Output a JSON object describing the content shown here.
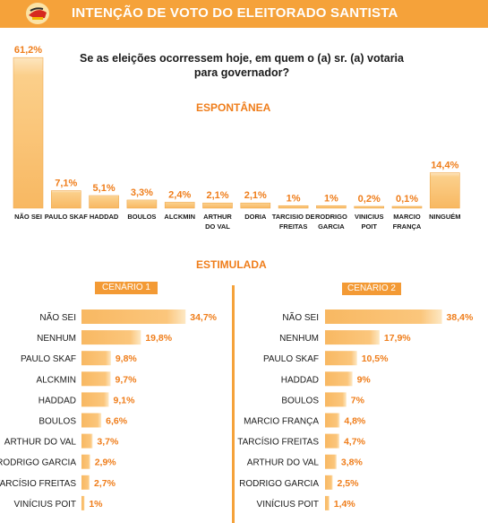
{
  "header": {
    "title": "INTENÇÃO DE VOTO DO ELEITORADO SANTISTA"
  },
  "question_line1": "Se as eleições ocorressem hoje, em quem o (a) sr. (a) votaria",
  "question_line2": "para governador?",
  "colors": {
    "accent": "#f5a23a",
    "bar": "#f9c274",
    "label": "#ef7d1a",
    "header_text": "#ffffff"
  },
  "chart_data": [
    {
      "type": "bar",
      "title": "ESPONTÂNEA",
      "categories": [
        "NÃO SEI",
        "PAULO SKAF",
        "HADDAD",
        "BOULOS",
        "ALCKMIN",
        "ARTHUR DO VAL",
        "DORIA",
        "TARCISIO DE FREITAS",
        "RODRIGO GARCIA",
        "VINICIUS POIT",
        "MARCIO FRANÇA",
        "NINGUÉM"
      ],
      "values": [
        61.2,
        7.1,
        5.1,
        3.3,
        2.4,
        2.1,
        2.1,
        1,
        1,
        0.2,
        0.1,
        14.4
      ],
      "value_labels": [
        "61,2%",
        "7,1%",
        "5,1%",
        "3,3%",
        "2,4%",
        "2,1%",
        "2,1%",
        "1%",
        "1%",
        "0,2%",
        "0,1%",
        "14,4%"
      ],
      "category_lines": [
        [
          "NÃO SEI"
        ],
        [
          "PAULO SKAF"
        ],
        [
          "HADDAD"
        ],
        [
          "BOULOS"
        ],
        [
          "ALCKMIN"
        ],
        [
          "ARTHUR",
          "DO VAL"
        ],
        [
          "DORIA"
        ],
        [
          "TARCISIO DE",
          "FREITAS"
        ],
        [
          "RODRIGO",
          "GARCIA"
        ],
        [
          "VINICIUS",
          "POIT"
        ],
        [
          "MARCIO",
          "FRANÇA"
        ],
        [
          "NINGUÉM"
        ]
      ],
      "ylim": [
        0,
        62
      ]
    },
    {
      "type": "bar",
      "orientation": "horizontal",
      "title": "ESTIMULADA",
      "scenario_label": "CENÁRIO 1",
      "categories": [
        "NÃO SEI",
        "NENHUM",
        "PAULO SKAF",
        "ALCKMIN",
        "HADDAD",
        "BOULOS",
        "ARTHUR DO VAL",
        "RODRIGO GARCIA",
        "TARCÍSIO FREITAS",
        "VINÍCIUS POIT"
      ],
      "values": [
        34.7,
        19.8,
        9.8,
        9.7,
        9.1,
        6.6,
        3.7,
        2.9,
        2.7,
        1
      ],
      "value_labels": [
        "34,7%",
        "19,8%",
        "9,8%",
        "9,7%",
        "9,1%",
        "6,6%",
        "3,7%",
        "2,9%",
        "2,7%",
        "1%"
      ],
      "xlim": [
        0,
        40
      ]
    },
    {
      "type": "bar",
      "orientation": "horizontal",
      "title": "ESTIMULADA",
      "scenario_label": "CENÁRIO 2",
      "categories": [
        "NÃO SEI",
        "NENHUM",
        "PAULO SKAF",
        "HADDAD",
        "BOULOS",
        "MARCIO FRANÇA",
        "TARCÍSIO FREITAS",
        "ARTHUR DO VAL",
        "RODRIGO GARCIA",
        "VINÍCIUS POIT"
      ],
      "values": [
        38.4,
        17.9,
        10.5,
        9,
        7,
        4.8,
        4.7,
        3.8,
        2.5,
        1.4
      ],
      "value_labels": [
        "38,4%",
        "17,9%",
        "10,5%",
        "9%",
        "7%",
        "4,8%",
        "4,7%",
        "3,8%",
        "2,5%",
        "1,4%"
      ],
      "xlim": [
        0,
        40
      ]
    }
  ]
}
